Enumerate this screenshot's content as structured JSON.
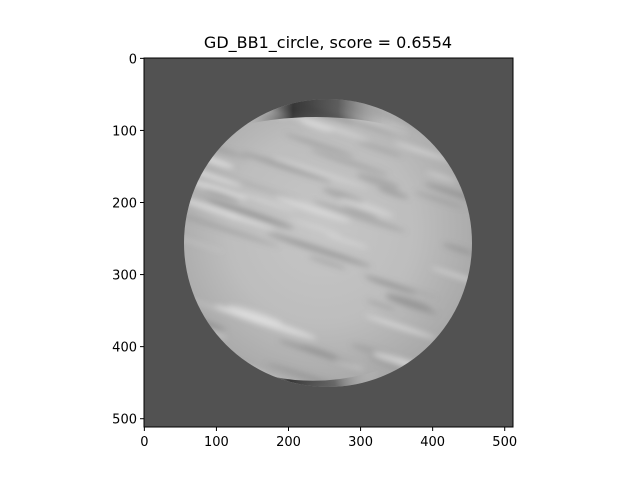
{
  "figure": {
    "title": "GD_BB1_circle, score = 0.6554",
    "image_description_colors": {
      "background": "#525252",
      "disk_light": "#d8d8d8",
      "disk_mid": "#b4b4b4",
      "disk_dark": "#1a1a1a"
    },
    "image_size": [
      512,
      512
    ],
    "x_ticks": [
      "0",
      "100",
      "200",
      "300",
      "400",
      "500"
    ],
    "y_ticks": [
      "0",
      "100",
      "200",
      "300",
      "400",
      "500"
    ],
    "x_tick_values": [
      0,
      100,
      200,
      300,
      400,
      500
    ],
    "y_tick_values": [
      0,
      100,
      200,
      300,
      400,
      500
    ]
  }
}
